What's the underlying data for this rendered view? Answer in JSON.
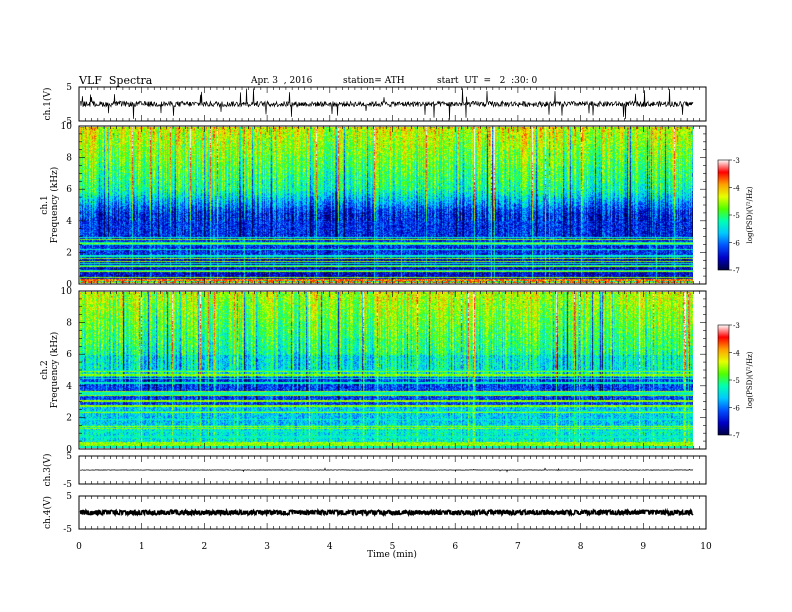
{
  "header": {
    "title": "VLF  Spectra",
    "date": "Apr. 3  , 2016",
    "station": "station= ATH",
    "start": "start  UT  =   2  :30: 0"
  },
  "chart_data": {
    "type": "heatmap",
    "xlabel": "Time  (min)",
    "xlim": [
      0,
      10
    ],
    "x_ticks": [
      "0",
      "1",
      "2",
      "3",
      "4",
      "5",
      "6",
      "7",
      "8",
      "9",
      "10"
    ],
    "data_end_min": 9.8,
    "panels": [
      {
        "id": "ch1-wave",
        "type": "line",
        "ylabel": "ch.1(V)",
        "ylim": [
          -5,
          5
        ],
        "y_ticks": [
          "5",
          "-5"
        ],
        "color": "#000000"
      },
      {
        "id": "ch1-spec",
        "type": "heatmap",
        "ylabel": "ch.1\nFrequency  (kHz)",
        "ylim": [
          0,
          10
        ],
        "y_ticks": [
          "0",
          "2",
          "4",
          "6",
          "8",
          "10"
        ],
        "colorbar": {
          "label": "log(PSD)(V²/Hz)",
          "range": [
            -7,
            -3
          ],
          "ticks": [
            "-3",
            "-4",
            "-5",
            "-6",
            "-7"
          ]
        }
      },
      {
        "id": "ch2-spec",
        "type": "heatmap",
        "ylabel": "ch.2\nFrequency  (kHz)",
        "ylim": [
          0,
          10
        ],
        "y_ticks": [
          "0",
          "2",
          "4",
          "6",
          "8",
          "10"
        ],
        "colorbar": {
          "label": "log(PSD)(V²/Hz)",
          "range": [
            -7,
            -3
          ],
          "ticks": [
            "-3",
            "-4",
            "-5",
            "-6",
            "-7"
          ]
        }
      },
      {
        "id": "ch3-wave",
        "type": "line",
        "ylabel": "ch.3(V)",
        "ylim": [
          -5,
          5
        ],
        "y_ticks": [
          "5",
          "-5"
        ],
        "color": "#000000"
      },
      {
        "id": "ch4-wave",
        "type": "line",
        "ylabel": "ch.4(V)",
        "ylim": [
          -5,
          5
        ],
        "y_ticks": [
          "5",
          "-5"
        ],
        "color": "#000000"
      }
    ],
    "colormap": [
      "#000040",
      "#0000c8",
      "#0050ff",
      "#00c8ff",
      "#00ffb4",
      "#50ff00",
      "#e6ff00",
      "#ffa000",
      "#ff0000",
      "#ffffff"
    ]
  }
}
